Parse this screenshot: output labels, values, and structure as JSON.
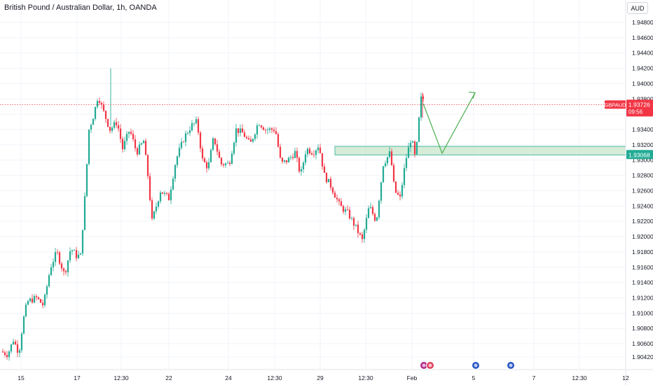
{
  "header": {
    "title": "British Pound / Australian Dollar, 1h, OANDA",
    "currency": "AUD"
  },
  "price_tag": {
    "symbol": "GBPAUD",
    "price": "1.93726",
    "countdown": "09:56",
    "color": "#f23645"
  },
  "zone_tag": {
    "price": "1.93068",
    "color": "#22ab94"
  },
  "colors": {
    "up": "#22ab94",
    "down": "#f23645",
    "zone_fill": "#c8e6c9",
    "projection": "#4caf50"
  },
  "chart_data": {
    "type": "candlestick",
    "y_ticks": [
      "1.94800",
      "1.94600",
      "1.94400",
      "1.94200",
      "1.94000",
      "1.93800",
      "1.93600",
      "1.93400",
      "1.93200",
      "1.93000",
      "1.92800",
      "1.92600",
      "1.92400",
      "1.92200",
      "1.92000",
      "1.91800",
      "1.91600",
      "1.91400",
      "1.91200",
      "1.91000",
      "1.90800",
      "1.90600",
      "1.90420"
    ],
    "x_ticks": [
      "15",
      "17",
      "12:30",
      "22",
      "24",
      "12:30",
      "29",
      "12:30",
      "Feb",
      "5",
      "7",
      "12:30",
      "12"
    ],
    "ylim": [
      1.9035,
      1.949
    ],
    "last_price": 1.93726,
    "support_zone": [
      1.93068,
      1.9318
    ],
    "projection_path": [
      [
        1.937,
        "now"
      ],
      [
        1.931,
        "+1.5d"
      ],
      [
        1.9388,
        "+3d"
      ]
    ]
  }
}
